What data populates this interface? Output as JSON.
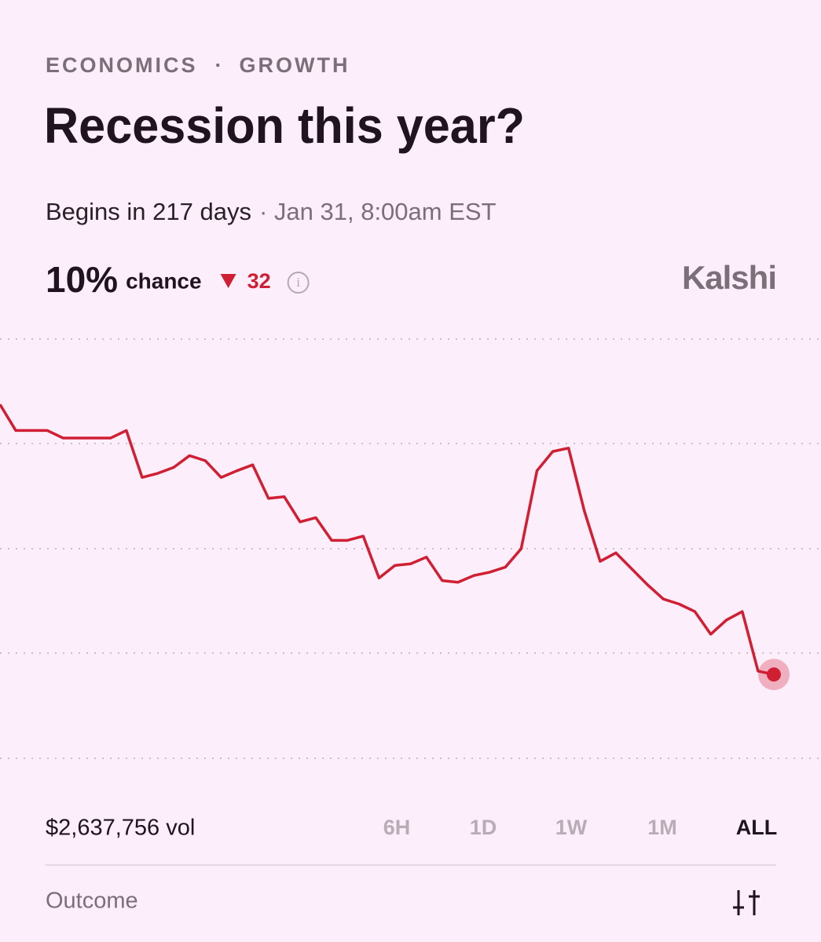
{
  "header": {
    "breadcrumb": [
      "ECONOMICS",
      "GROWTH"
    ],
    "separator": "·",
    "title": "Recession this year?",
    "begins": "Begins in 217 days",
    "date": "· Jan 31, 8:00am EST"
  },
  "stats": {
    "chance": "10%",
    "chance_label": "chance",
    "change": 32,
    "brand": "Kalshi"
  },
  "chart_data": {
    "type": "line",
    "color": "#d01f32",
    "ylim": [
      0,
      50
    ],
    "values": [
      42.2,
      39.1,
      39.1,
      39.1,
      38.2,
      38.2,
      38.2,
      38.2,
      39.1,
      33.5,
      34.0,
      34.7,
      36.1,
      35.5,
      33.5,
      34.3,
      35.0,
      31.0,
      31.2,
      28.2,
      28.7,
      26.0,
      26.0,
      26.5,
      21.5,
      23.0,
      23.2,
      24.0,
      21.2,
      21.0,
      21.8,
      22.2,
      22.8,
      25.0,
      34.3,
      36.6,
      37.0,
      29.5,
      23.5,
      24.5,
      22.6,
      20.7,
      19.0,
      18.4,
      17.5,
      14.8,
      16.5,
      17.5,
      10.4,
      10.0
    ]
  },
  "footer": {
    "volume": "$2,637,756 vol",
    "ranges": [
      "6H",
      "1D",
      "1W",
      "1M",
      "ALL"
    ],
    "selected": "ALL",
    "outcome": "Outcome"
  }
}
